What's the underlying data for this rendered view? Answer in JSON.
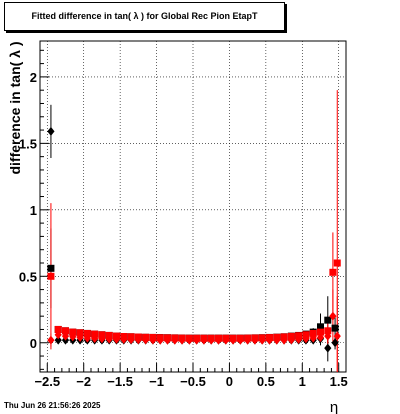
{
  "chart_data": {
    "type": "scatter",
    "title": "Fitted difference in tan( λ ) for Global Rec Pion EtapT",
    "xlabel": "η",
    "ylabel": "difference in tan( λ )",
    "xlim": [
      -2.6,
      1.6
    ],
    "ylim": [
      -0.22,
      2.27
    ],
    "grid": true,
    "x_ticks": [
      "−2.5",
      "−2",
      "−1.5",
      "−1",
      "−0.5",
      "0",
      "0.5",
      "1",
      "1.5"
    ],
    "x_tick_values": [
      -2.5,
      -2,
      -1.5,
      -1,
      -0.5,
      0,
      0.5,
      1,
      1.5
    ],
    "y_ticks": [
      "0",
      "0.5",
      "1",
      "1.5",
      "2"
    ],
    "y_tick_values": [
      0,
      0.5,
      1,
      1.5,
      2
    ],
    "series": [
      {
        "color": "#000000",
        "marker": "square",
        "x": [
          -2.45,
          -2.35,
          -2.25,
          -2.15,
          -2.05,
          -1.95,
          -1.85,
          -1.75,
          -1.65,
          -1.55,
          -1.45,
          -1.35,
          -1.25,
          -1.15,
          -1.05,
          -0.95,
          -0.85,
          -0.75,
          -0.65,
          -0.55,
          -0.45,
          -0.35,
          -0.25,
          -0.15,
          -0.05,
          0.05,
          0.15,
          0.25,
          0.35,
          0.45,
          0.55,
          0.65,
          0.75,
          0.85,
          0.95,
          1.05,
          1.15,
          1.25,
          1.35,
          1.45
        ],
        "values": [
          0.56,
          0.1,
          0.09,
          0.08,
          0.075,
          0.07,
          0.065,
          0.06,
          0.055,
          0.05,
          0.047,
          0.045,
          0.043,
          0.041,
          0.04,
          0.039,
          0.038,
          0.037,
          0.036,
          0.035,
          0.035,
          0.035,
          0.035,
          0.035,
          0.035,
          0.035,
          0.035,
          0.036,
          0.037,
          0.038,
          0.04,
          0.042,
          0.045,
          0.05,
          0.055,
          0.065,
          0.08,
          0.12,
          0.17,
          0.11
        ],
        "errors": [
          0.3,
          0.02,
          0.015,
          0.012,
          0.01,
          0.01,
          0.01,
          0.01,
          0.01,
          0.01,
          0.01,
          0.01,
          0.01,
          0.01,
          0.01,
          0.01,
          0.01,
          0.01,
          0.01,
          0.01,
          0.01,
          0.01,
          0.01,
          0.01,
          0.01,
          0.01,
          0.01,
          0.01,
          0.01,
          0.01,
          0.01,
          0.01,
          0.01,
          0.012,
          0.015,
          0.02,
          0.03,
          0.1,
          0.18,
          0.1
        ]
      },
      {
        "color": "#000000",
        "marker": "diamond",
        "x": [
          -2.45,
          -2.35,
          -2.25,
          -2.15,
          -2.05,
          -1.95,
          -1.85,
          -1.75,
          -1.65,
          -1.55,
          -1.45,
          -1.35,
          -1.25,
          -1.15,
          -1.05,
          -0.95,
          -0.85,
          -0.75,
          -0.65,
          -0.55,
          -0.45,
          -0.35,
          -0.25,
          -0.15,
          -0.05,
          0.05,
          0.15,
          0.25,
          0.35,
          0.45,
          0.55,
          0.65,
          0.75,
          0.85,
          0.95,
          1.05,
          1.15,
          1.25,
          1.35,
          1.45
        ],
        "values": [
          1.59,
          0.02,
          0.02,
          0.02,
          0.02,
          0.02,
          0.02,
          0.02,
          0.02,
          0.02,
          0.02,
          0.02,
          0.02,
          0.02,
          0.02,
          0.02,
          0.02,
          0.02,
          0.02,
          0.02,
          0.02,
          0.02,
          0.02,
          0.02,
          0.02,
          0.02,
          0.02,
          0.02,
          0.02,
          0.02,
          0.02,
          0.02,
          0.02,
          0.02,
          0.02,
          0.02,
          0.02,
          0.03,
          -0.04,
          0.0
        ],
        "errors": [
          0.2,
          0.005,
          0.005,
          0.005,
          0.005,
          0.005,
          0.005,
          0.005,
          0.005,
          0.005,
          0.005,
          0.005,
          0.005,
          0.005,
          0.005,
          0.005,
          0.005,
          0.005,
          0.005,
          0.005,
          0.005,
          0.005,
          0.005,
          0.005,
          0.005,
          0.005,
          0.005,
          0.005,
          0.005,
          0.005,
          0.005,
          0.005,
          0.005,
          0.005,
          0.005,
          0.005,
          0.005,
          0.05,
          0.1,
          0.05
        ]
      },
      {
        "color": "#ff0000",
        "marker": "square",
        "x": [
          -2.45,
          -2.35,
          -2.25,
          -2.15,
          -2.05,
          -1.95,
          -1.85,
          -1.75,
          -1.65,
          -1.55,
          -1.45,
          -1.35,
          -1.25,
          -1.15,
          -1.05,
          -0.95,
          -0.85,
          -0.75,
          -0.65,
          -0.55,
          -0.45,
          -0.35,
          -0.25,
          -0.15,
          -0.05,
          0.05,
          0.15,
          0.25,
          0.35,
          0.45,
          0.55,
          0.65,
          0.75,
          0.85,
          0.95,
          1.05,
          1.15,
          1.25,
          1.35,
          1.42,
          1.48
        ],
        "values": [
          0.5,
          0.1,
          0.09,
          0.08,
          0.075,
          0.07,
          0.065,
          0.06,
          0.055,
          0.05,
          0.047,
          0.045,
          0.043,
          0.041,
          0.04,
          0.038,
          0.037,
          0.036,
          0.035,
          0.034,
          0.034,
          0.034,
          0.034,
          0.034,
          0.034,
          0.034,
          0.034,
          0.035,
          0.036,
          0.037,
          0.039,
          0.041,
          0.044,
          0.048,
          0.053,
          0.06,
          0.07,
          0.08,
          0.09,
          0.53,
          0.6
        ],
        "errors": [
          0.55,
          0.02,
          0.015,
          0.012,
          0.01,
          0.01,
          0.01,
          0.01,
          0.01,
          0.01,
          0.01,
          0.01,
          0.01,
          0.01,
          0.01,
          0.01,
          0.01,
          0.01,
          0.01,
          0.01,
          0.01,
          0.01,
          0.01,
          0.01,
          0.01,
          0.01,
          0.01,
          0.01,
          0.01,
          0.01,
          0.01,
          0.01,
          0.01,
          0.012,
          0.015,
          0.02,
          0.03,
          0.06,
          0.1,
          0.3,
          1.3
        ]
      },
      {
        "color": "#ff0000",
        "marker": "diamond",
        "x": [
          -2.45,
          -2.35,
          -2.25,
          -2.15,
          -2.05,
          -1.95,
          -1.85,
          -1.75,
          -1.65,
          -1.55,
          -1.45,
          -1.35,
          -1.25,
          -1.15,
          -1.05,
          -0.95,
          -0.85,
          -0.75,
          -0.65,
          -0.55,
          -0.45,
          -0.35,
          -0.25,
          -0.15,
          -0.05,
          0.05,
          0.15,
          0.25,
          0.35,
          0.45,
          0.55,
          0.65,
          0.75,
          0.85,
          0.95,
          1.05,
          1.15,
          1.25,
          1.35,
          1.42,
          1.48
        ],
        "values": [
          0.02,
          0.06,
          0.05,
          0.045,
          0.04,
          0.035,
          0.032,
          0.03,
          0.028,
          0.026,
          0.025,
          0.024,
          0.023,
          0.022,
          0.021,
          0.02,
          0.02,
          0.02,
          0.02,
          0.02,
          0.02,
          0.02,
          0.02,
          0.02,
          0.02,
          0.02,
          0.02,
          0.02,
          0.02,
          0.02,
          0.02,
          0.02,
          0.02,
          0.022,
          0.025,
          0.03,
          0.035,
          0.04,
          0.05,
          0.2,
          0.05
        ],
        "errors": [
          0.05,
          0.01,
          0.01,
          0.01,
          0.01,
          0.01,
          0.01,
          0.01,
          0.01,
          0.01,
          0.01,
          0.01,
          0.01,
          0.01,
          0.01,
          0.01,
          0.01,
          0.01,
          0.01,
          0.01,
          0.01,
          0.01,
          0.01,
          0.01,
          0.01,
          0.01,
          0.01,
          0.01,
          0.01,
          0.01,
          0.01,
          0.01,
          0.01,
          0.01,
          0.01,
          0.015,
          0.02,
          0.03,
          0.05,
          0.2,
          0.3
        ]
      }
    ]
  },
  "footer": {
    "timestamp": "Thu Jun 26 21:56:26 2025"
  }
}
